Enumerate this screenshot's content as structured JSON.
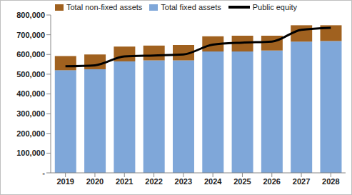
{
  "chart_data": {
    "type": "bar",
    "stacked": true,
    "grid": false,
    "legend": "top",
    "categories": [
      "2019",
      "2020",
      "2021",
      "2022",
      "2023",
      "2024",
      "2025",
      "2026",
      "2027",
      "2028"
    ],
    "series": [
      {
        "name": "Total fixed assets",
        "type": "bar",
        "color": "#7fa7d9",
        "values": [
          520000,
          525000,
          565000,
          570000,
          570000,
          615000,
          615000,
          620000,
          665000,
          668000
        ]
      },
      {
        "name": "Total non-fixed assets",
        "type": "bar",
        "color": "#a0611f",
        "values": [
          72000,
          75000,
          75000,
          75000,
          78000,
          77000,
          80000,
          75000,
          83000,
          80000
        ]
      },
      {
        "name": "Public equity",
        "type": "line",
        "color": "#000000",
        "values": [
          540000,
          545000,
          590000,
          595000,
          600000,
          650000,
          660000,
          665000,
          725000,
          735000
        ]
      }
    ],
    "ylim": [
      0,
      800000
    ],
    "yticks": [
      {
        "value": 0,
        "label": "-"
      },
      {
        "value": 100000,
        "label": "100,000"
      },
      {
        "value": 200000,
        "label": "200,000"
      },
      {
        "value": 300000,
        "label": "300,000"
      },
      {
        "value": 400000,
        "label": "400,000"
      },
      {
        "value": 500000,
        "label": "500,000"
      },
      {
        "value": 600000,
        "label": "600,000"
      },
      {
        "value": 700000,
        "label": "700,000"
      },
      {
        "value": 800000,
        "label": "800,000"
      }
    ]
  }
}
